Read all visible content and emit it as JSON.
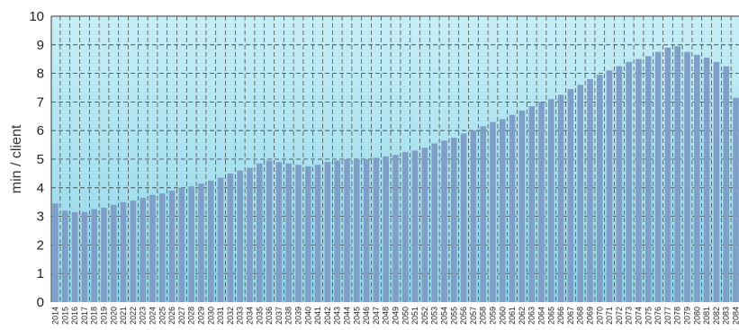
{
  "chart_data": {
    "type": "bar",
    "ylabel": "min / client",
    "ylim": [
      0,
      10
    ],
    "yticks": [
      0,
      1,
      2,
      3,
      4,
      5,
      6,
      7,
      8,
      9,
      10
    ],
    "grid": true,
    "categories": [
      "2014",
      "2015",
      "2016",
      "2017",
      "2018",
      "2019",
      "2020",
      "2021",
      "2022",
      "2023",
      "2024",
      "2025",
      "2026",
      "2027",
      "2028",
      "2029",
      "2030",
      "2031",
      "2032",
      "2033",
      "2034",
      "2035",
      "2036",
      "2037",
      "2038",
      "2039",
      "2040",
      "2041",
      "2042",
      "2043",
      "2044",
      "2045",
      "2046",
      "2047",
      "2048",
      "2049",
      "2050",
      "2051",
      "2052",
      "2053",
      "2054",
      "2055",
      "2056",
      "2057",
      "2058",
      "2059",
      "2060",
      "2061",
      "2062",
      "2063",
      "2064",
      "2065",
      "2066",
      "2067",
      "2068",
      "2069",
      "2070",
      "2071",
      "2072",
      "2073",
      "2074",
      "2075",
      "2076",
      "2077",
      "2078",
      "2079",
      "2080",
      "2081",
      "2082",
      "2083",
      "2084"
    ],
    "values": [
      3.45,
      3.2,
      3.15,
      3.15,
      3.25,
      3.3,
      3.4,
      3.5,
      3.55,
      3.65,
      3.75,
      3.8,
      3.9,
      4.0,
      4.05,
      4.15,
      4.25,
      4.35,
      4.5,
      4.6,
      4.7,
      4.85,
      4.95,
      4.9,
      4.85,
      4.8,
      4.75,
      4.8,
      4.9,
      4.95,
      5.0,
      5.0,
      5.0,
      5.05,
      5.1,
      5.15,
      5.25,
      5.3,
      5.4,
      5.55,
      5.65,
      5.75,
      5.9,
      6.0,
      6.15,
      6.3,
      6.4,
      6.55,
      6.7,
      6.85,
      7.0,
      7.1,
      7.25,
      7.45,
      7.6,
      7.8,
      7.95,
      8.1,
      8.25,
      8.4,
      8.5,
      8.6,
      8.75,
      8.9,
      8.95,
      8.75,
      8.65,
      8.55,
      8.4,
      8.25,
      7.15
    ],
    "colors": {
      "bar": "#7f9fc9",
      "background_top": "#c7eef7",
      "background_bottom": "#8fd6e8"
    }
  }
}
